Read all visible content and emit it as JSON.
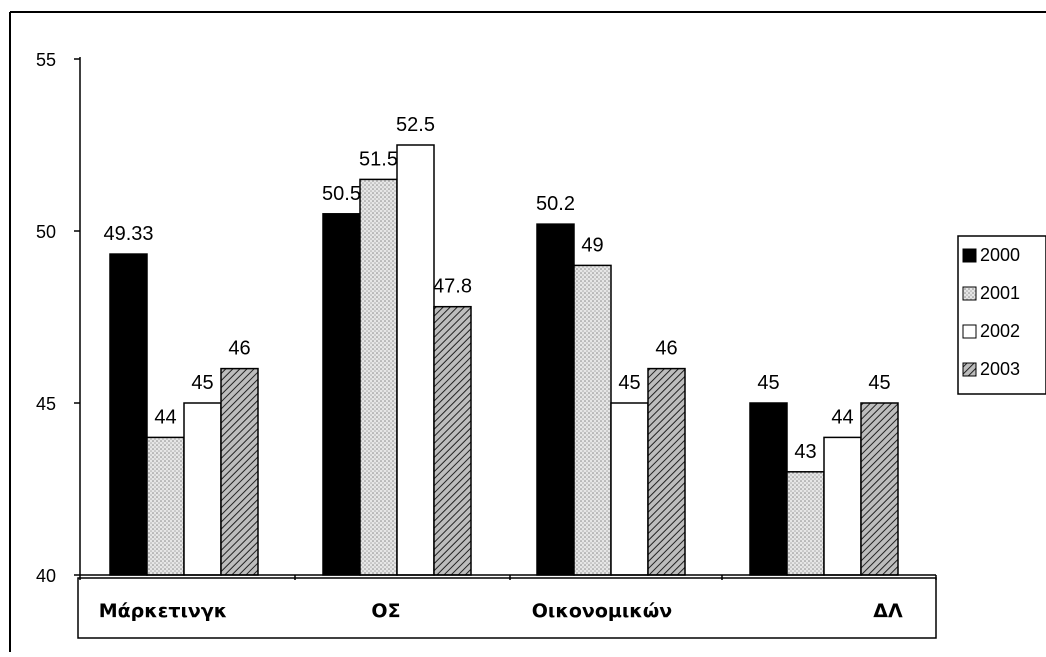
{
  "chart_data": {
    "type": "bar",
    "categories": [
      "Μάρκετινγκ",
      "ΟΣ",
      "Οικονομικών",
      "ΔΛ"
    ],
    "series": [
      {
        "name": "2000",
        "values": [
          49.33,
          50.5,
          50.2,
          45
        ],
        "labels": [
          "49.33",
          "50.5",
          "50.2",
          "45"
        ],
        "fill": "solid-black"
      },
      {
        "name": "2001",
        "values": [
          44,
          51.5,
          49,
          43
        ],
        "labels": [
          "44",
          "51.5",
          "49",
          "43"
        ],
        "fill": "dotted-gray"
      },
      {
        "name": "2002",
        "values": [
          45,
          52.5,
          45,
          44
        ],
        "labels": [
          "45",
          "52.5",
          "45",
          "44"
        ],
        "fill": "white"
      },
      {
        "name": "2003",
        "values": [
          46,
          47.8,
          46,
          45
        ],
        "labels": [
          "46",
          "47.8",
          "46",
          "45"
        ],
        "fill": "diagonal-hatch"
      }
    ],
    "ylim": [
      40,
      55
    ],
    "yticks": [
      40,
      45,
      50,
      55
    ],
    "grid": false,
    "legend_position": "right",
    "title": "",
    "xlabel": "",
    "ylabel": ""
  }
}
